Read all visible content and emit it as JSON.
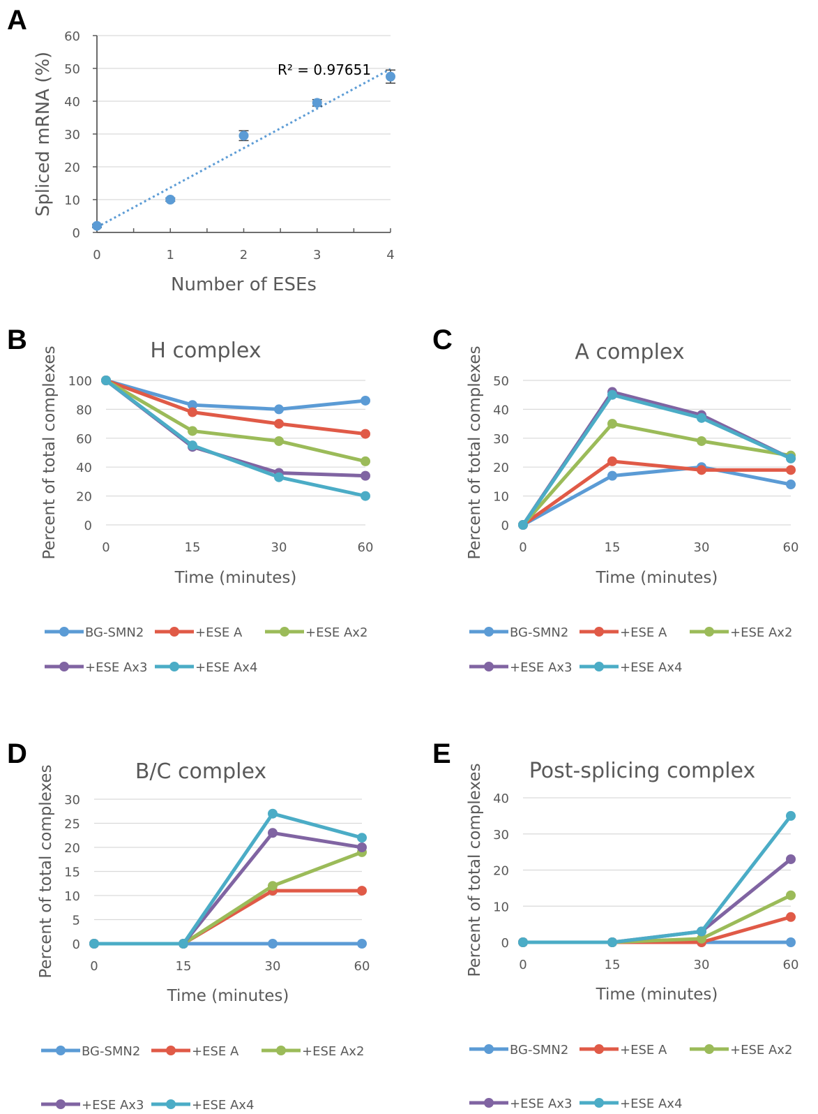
{
  "colors": {
    "series": [
      "#5B9BD5",
      "#E05A47",
      "#9BBB59",
      "#8064A2",
      "#4BACC6"
    ],
    "grid": "#D9D9D9",
    "axis": "#595959"
  },
  "panels": [
    {
      "letter": "A",
      "chart_data": {
        "type": "scatter",
        "xlabel": "Number of ESEs",
        "ylabel": "Spliced mRNA (%)",
        "xlim": [
          0,
          4
        ],
        "ylim": [
          0,
          60
        ],
        "x_ticks": [
          "0",
          "1",
          "2",
          "3",
          "4"
        ],
        "y_ticks": [
          "0",
          "10",
          "20",
          "30",
          "40",
          "50",
          "60"
        ],
        "series": [
          {
            "x": [
              0,
              1,
              2,
              3,
              4
            ],
            "values": [
              2,
              10,
              29.5,
              39.5,
              47.5
            ],
            "error": [
              0.5,
              0.5,
              1.5,
              1,
              2
            ]
          }
        ],
        "trendline": {
          "type": "linear",
          "r2_label": "R² = 0.97651"
        },
        "grid": true
      }
    },
    {
      "letter": "B",
      "chart_data": {
        "type": "line",
        "title": "H complex",
        "xlabel": "Time (minutes)",
        "ylabel": "Percent of total complexes",
        "categories": [
          "0",
          "15",
          "30",
          "60"
        ],
        "ylim": [
          0,
          100
        ],
        "y_ticks": [
          "0",
          "20",
          "40",
          "60",
          "80",
          "100"
        ],
        "series": [
          {
            "name": "BG-SMN2",
            "values": [
              100,
              83,
              80,
              86
            ]
          },
          {
            "name": "+ESE A",
            "values": [
              100,
              78,
              70,
              63
            ]
          },
          {
            "name": "+ESE Ax2",
            "values": [
              100,
              65,
              58,
              44
            ]
          },
          {
            "name": "+ESE Ax3",
            "values": [
              100,
              54,
              36,
              34
            ]
          },
          {
            "name": "+ESE Ax4",
            "values": [
              100,
              55,
              33,
              20
            ]
          }
        ],
        "grid": true,
        "legend": "bottom"
      }
    },
    {
      "letter": "C",
      "chart_data": {
        "type": "line",
        "title": "A complex",
        "xlabel": "Time (minutes)",
        "ylabel": "Percent of total complexes",
        "categories": [
          "0",
          "15",
          "30",
          "60"
        ],
        "ylim": [
          0,
          50
        ],
        "y_ticks": [
          "0",
          "10",
          "20",
          "30",
          "40",
          "50"
        ],
        "series": [
          {
            "name": "BG-SMN2",
            "values": [
              0,
              17,
              20,
              14
            ]
          },
          {
            "name": "+ESE A",
            "values": [
              0,
              22,
              19,
              19
            ]
          },
          {
            "name": "+ESE Ax2",
            "values": [
              0,
              35,
              29,
              24
            ]
          },
          {
            "name": "+ESE Ax3",
            "values": [
              0,
              46,
              38,
              23
            ]
          },
          {
            "name": "+ESE Ax4",
            "values": [
              0,
              45,
              37,
              23
            ]
          }
        ],
        "grid": true,
        "legend": "bottom"
      }
    },
    {
      "letter": "D",
      "chart_data": {
        "type": "line",
        "title": "B/C complex",
        "xlabel": "Time (minutes)",
        "ylabel": "Percent of total complexes",
        "categories": [
          "0",
          "15",
          "30",
          "60"
        ],
        "ylim": [
          0,
          30
        ],
        "y_ticks": [
          "0",
          "5",
          "10",
          "15",
          "20",
          "25",
          "30"
        ],
        "series": [
          {
            "name": "BG-SMN2",
            "values": [
              0,
              0,
              0,
              0
            ]
          },
          {
            "name": "+ESE A",
            "values": [
              0,
              0,
              11,
              11
            ]
          },
          {
            "name": "+ESE Ax2",
            "values": [
              0,
              0,
              12,
              19
            ]
          },
          {
            "name": "+ESE Ax3",
            "values": [
              0,
              0,
              23,
              20
            ]
          },
          {
            "name": "+ESE Ax4",
            "values": [
              0,
              0,
              27,
              22
            ]
          }
        ],
        "grid": true,
        "legend": "bottom"
      }
    },
    {
      "letter": "E",
      "chart_data": {
        "type": "line",
        "title": "Post-splicing complex",
        "xlabel": "Time (minutes)",
        "ylabel": "Percent of total complexes",
        "categories": [
          "0",
          "15",
          "30",
          "60"
        ],
        "ylim": [
          0,
          40
        ],
        "y_ticks": [
          "0",
          "10",
          "20",
          "30",
          "40"
        ],
        "series": [
          {
            "name": "BG-SMN2",
            "values": [
              0,
              0,
              0,
              0
            ]
          },
          {
            "name": "+ESE A",
            "values": [
              0,
              0,
              0,
              7
            ]
          },
          {
            "name": "+ESE Ax2",
            "values": [
              0,
              0,
              1,
              13
            ]
          },
          {
            "name": "+ESE Ax3",
            "values": [
              0,
              0,
              3,
              23
            ]
          },
          {
            "name": "+ESE Ax4",
            "values": [
              0,
              0,
              3,
              35
            ]
          }
        ],
        "grid": true,
        "legend": "bottom"
      }
    }
  ]
}
